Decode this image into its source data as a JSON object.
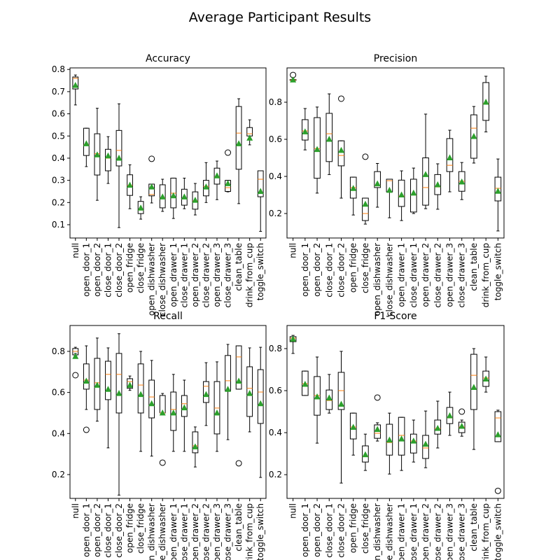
{
  "title": "Average Participant Results",
  "chart_data": [
    {
      "type": "box",
      "title": "Accuracy",
      "median_color": "#ff7f0e",
      "mean_color": "#2ca02c",
      "categories": [
        "null",
        "open_door_1",
        "open_door_2",
        "close_door_1",
        "close_door_2",
        "open_fridge",
        "close_fridge",
        "open_dishwasher",
        "close_dishwasher",
        "open_drawer_1",
        "close_drawer_1",
        "open_drawer_2",
        "close_drawer_2",
        "open_drawer_3",
        "close_drawer_3",
        "clean_table",
        "drink_from_cup",
        "toggle_switch"
      ],
      "whislo": [
        0.64,
        0.362,
        0.21,
        0.286,
        0.087,
        0.172,
        0.125,
        0.198,
        0.16,
        0.128,
        0.172,
        0.144,
        0.2,
        0.213,
        0.248,
        0.195,
        0.46,
        0.07
      ],
      "q1": [
        0.712,
        0.412,
        0.324,
        0.343,
        0.365,
        0.232,
        0.15,
        0.23,
        0.176,
        0.176,
        0.188,
        0.17,
        0.23,
        0.283,
        0.25,
        0.35,
        0.5,
        0.226
      ],
      "median": [
        0.76,
        0.46,
        0.42,
        0.4,
        0.435,
        0.277,
        0.166,
        0.236,
        0.22,
        0.242,
        0.217,
        0.207,
        0.273,
        0.315,
        0.267,
        0.513,
        0.51,
        0.305
      ],
      "q3": [
        0.766,
        0.535,
        0.51,
        0.44,
        0.525,
        0.325,
        0.205,
        0.283,
        0.28,
        0.31,
        0.26,
        0.248,
        0.3,
        0.355,
        0.3,
        0.633,
        0.538,
        0.343
      ],
      "whishi": [
        0.775,
        0.535,
        0.625,
        0.497,
        0.645,
        0.37,
        0.226,
        0.283,
        0.305,
        0.31,
        0.31,
        0.286,
        0.38,
        0.387,
        0.3,
        0.668,
        0.573,
        0.343
      ],
      "mean": [
        0.728,
        0.465,
        0.415,
        0.41,
        0.4,
        0.278,
        0.175,
        0.27,
        0.225,
        0.23,
        0.225,
        0.21,
        0.27,
        0.32,
        0.285,
        0.465,
        0.49,
        0.25
      ],
      "fliers": [
        [],
        [],
        [],
        [],
        [],
        [],
        [],
        [
          0.397
        ],
        [],
        [],
        [],
        [],
        [],
        [],
        [
          0.425
        ],
        [],
        [],
        []
      ],
      "ylim": [
        0.04,
        0.807
      ],
      "yticks": [
        0.1,
        0.2,
        0.3,
        0.4,
        0.5,
        0.6,
        0.7,
        0.8
      ]
    },
    {
      "type": "box",
      "title": "Precision",
      "median_color": "#ff7f0e",
      "mean_color": "#2ca02c",
      "categories": [
        "null",
        "open_door_1",
        "open_door_2",
        "close_door_1",
        "close_door_2",
        "open_fridge",
        "close_fridge",
        "open_dishwasher",
        "close_dishwasher",
        "open_drawer_1",
        "close_drawer_1",
        "open_drawer_2",
        "close_drawer_2",
        "open_drawer_3",
        "close_drawer_3",
        "clean_table",
        "drink_from_cup",
        "toggle_switch"
      ],
      "whislo": [
        0.915,
        0.543,
        0.31,
        0.41,
        0.283,
        0.192,
        0.143,
        0.234,
        0.177,
        0.162,
        0.2,
        0.226,
        0.223,
        0.317,
        0.275,
        0.472,
        0.64,
        0.106
      ],
      "q1": [
        0.918,
        0.596,
        0.39,
        0.48,
        0.457,
        0.283,
        0.162,
        0.34,
        0.317,
        0.238,
        0.208,
        0.245,
        0.302,
        0.426,
        0.32,
        0.498,
        0.702,
        0.268
      ],
      "median": [
        0.92,
        0.645,
        0.55,
        0.63,
        0.513,
        0.34,
        0.2,
        0.35,
        0.377,
        0.294,
        0.3,
        0.34,
        0.343,
        0.46,
        0.374,
        0.66,
        0.792,
        0.336
      ],
      "q3": [
        0.922,
        0.706,
        0.717,
        0.74,
        0.592,
        0.396,
        0.283,
        0.426,
        0.385,
        0.38,
        0.385,
        0.5,
        0.41,
        0.604,
        0.426,
        0.732,
        0.906,
        0.396
      ],
      "whishi": [
        0.925,
        0.766,
        0.774,
        0.845,
        0.592,
        0.396,
        0.283,
        0.47,
        0.385,
        0.43,
        0.445,
        0.736,
        0.468,
        0.649,
        0.475,
        0.777,
        0.94,
        0.494
      ],
      "mean": [
        0.92,
        0.64,
        0.545,
        0.6,
        0.54,
        0.335,
        0.25,
        0.36,
        0.325,
        0.3,
        0.31,
        0.41,
        0.355,
        0.5,
        0.37,
        0.615,
        0.8,
        0.32
      ],
      "fliers": [
        [
          0.947
        ],
        [],
        [],
        [],
        [
          0.819
        ],
        [],
        [
          0.506
        ],
        [],
        [],
        [],
        [],
        [],
        [],
        [],
        [],
        [],
        [],
        []
      ],
      "ylim": [
        0.068,
        0.985
      ],
      "yticks": [
        0.2,
        0.4,
        0.6,
        0.8
      ]
    },
    {
      "type": "box",
      "title": "Recall",
      "median_color": "#ff7f0e",
      "mean_color": "#2ca02c",
      "categories": [
        "null",
        "open_door_1",
        "open_door_2",
        "close_door_1",
        "close_door_2",
        "open_fridge",
        "close_fridge",
        "open_dishwasher",
        "close_dishwasher",
        "open_drawer_1",
        "close_drawer_1",
        "open_drawer_2",
        "close_drawer_2",
        "open_drawer_3",
        "close_drawer_3",
        "clean_table",
        "drink_from_cup",
        "toggle_switch"
      ],
      "whislo": [
        0.79,
        0.517,
        0.46,
        0.33,
        0.1,
        0.61,
        0.313,
        0.29,
        0.5,
        0.313,
        0.313,
        0.237,
        0.439,
        0.313,
        0.37,
        0.616,
        0.408,
        0.186
      ],
      "q1": [
        0.783,
        0.616,
        0.517,
        0.565,
        0.5,
        0.62,
        0.5,
        0.476,
        0.5,
        0.415,
        0.483,
        0.306,
        0.551,
        0.398,
        0.609,
        0.616,
        0.483,
        0.449
      ],
      "median": [
        0.8,
        0.66,
        0.647,
        0.688,
        0.688,
        0.653,
        0.636,
        0.578,
        0.5,
        0.517,
        0.545,
        0.34,
        0.63,
        0.524,
        0.657,
        0.773,
        0.62,
        0.602
      ],
      "q3": [
        0.814,
        0.739,
        0.766,
        0.752,
        0.79,
        0.667,
        0.739,
        0.66,
        0.585,
        0.602,
        0.585,
        0.408,
        0.653,
        0.653,
        0.78,
        0.827,
        0.725,
        0.711
      ],
      "whishi": [
        0.82,
        0.827,
        0.865,
        0.817,
        0.886,
        0.68,
        0.8,
        0.756,
        0.595,
        0.688,
        0.66,
        0.432,
        0.745,
        0.749,
        0.834,
        0.827,
        0.817,
        0.82
      ],
      "mean": [
        0.775,
        0.655,
        0.635,
        0.615,
        0.595,
        0.635,
        0.59,
        0.545,
        0.5,
        0.5,
        0.525,
        0.335,
        0.59,
        0.5,
        0.615,
        0.655,
        0.595,
        0.545
      ],
      "fliers": [
        [
          0.684
        ],
        [
          0.418
        ],
        [],
        [],
        [],
        [],
        [],
        [],
        [
          0.258
        ],
        [],
        [],
        [],
        [],
        [],
        [],
        [
          0.255
        ],
        [],
        []
      ],
      "ylim": [
        0.084,
        0.926
      ],
      "yticks": [
        0.2,
        0.4,
        0.6,
        0.8
      ]
    },
    {
      "type": "box",
      "title": "F1-Score",
      "median_color": "#ff7f0e",
      "mean_color": "#2ca02c",
      "categories": [
        "null",
        "open_door_1",
        "open_door_2",
        "close_door_1",
        "close_door_2",
        "open_fridge",
        "close_fridge",
        "open_dishwasher",
        "close_dishwasher",
        "open_drawer_1",
        "close_drawer_1",
        "open_drawer_2",
        "close_drawer_2",
        "open_drawer_3",
        "close_drawer_3",
        "clean_table",
        "drink_from_cup",
        "toggle_switch"
      ],
      "whislo": [
        0.777,
        0.577,
        0.35,
        0.493,
        0.16,
        0.293,
        0.22,
        0.36,
        0.203,
        0.22,
        0.26,
        0.233,
        0.327,
        0.387,
        0.383,
        0.32,
        0.593,
        0.357
      ],
      "q1": [
        0.833,
        0.577,
        0.483,
        0.51,
        0.51,
        0.37,
        0.26,
        0.373,
        0.293,
        0.293,
        0.303,
        0.277,
        0.393,
        0.443,
        0.4,
        0.51,
        0.62,
        0.357
      ],
      "median": [
        0.85,
        0.633,
        0.577,
        0.553,
        0.6,
        0.427,
        0.287,
        0.397,
        0.353,
        0.387,
        0.36,
        0.327,
        0.42,
        0.47,
        0.427,
        0.673,
        0.66,
        0.47
      ],
      "q3": [
        0.857,
        0.693,
        0.667,
        0.603,
        0.687,
        0.493,
        0.337,
        0.437,
        0.44,
        0.473,
        0.393,
        0.387,
        0.46,
        0.52,
        0.45,
        0.773,
        0.693,
        0.5
      ],
      "whishi": [
        0.863,
        0.693,
        0.76,
        0.677,
        0.787,
        0.493,
        0.393,
        0.447,
        0.493,
        0.473,
        0.46,
        0.503,
        0.55,
        0.593,
        0.46,
        0.8,
        0.76,
        0.507
      ],
      "mean": [
        0.845,
        0.63,
        0.57,
        0.565,
        0.535,
        0.425,
        0.295,
        0.415,
        0.365,
        0.37,
        0.36,
        0.345,
        0.42,
        0.48,
        0.43,
        0.615,
        0.655,
        0.39
      ],
      "fliers": [
        [],
        [],
        [],
        [],
        [],
        [],
        [],
        [
          0.567
        ],
        [],
        [],
        [],
        [],
        [],
        [],
        [
          0.5
        ],
        [],
        [],
        [
          0.123
        ]
      ],
      "ylim": [
        0.087,
        0.91
      ],
      "yticks": [
        0.2,
        0.4,
        0.6,
        0.8
      ]
    }
  ]
}
